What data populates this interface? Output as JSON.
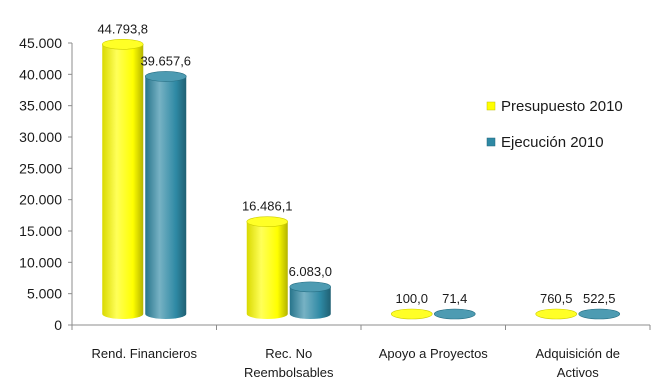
{
  "chart_data": {
    "type": "bar",
    "categories": [
      [
        "Rend. Financieros"
      ],
      [
        "Rec. No",
        "Reembolsables"
      ],
      [
        "Apoyo a Proyectos"
      ],
      [
        "Adquisición de",
        "Activos"
      ]
    ],
    "series": [
      {
        "name": "Presupuesto 2010",
        "color": "#ffff00",
        "values": [
          44793.8,
          16486.1,
          100.0,
          760.5
        ],
        "labels": [
          "44.793,8",
          "16.486,1",
          "100,0",
          "760,5"
        ]
      },
      {
        "name": "Ejecución 2010",
        "color": "#2e89a4",
        "values": [
          39657.6,
          6083.0,
          71.4,
          522.5
        ],
        "labels": [
          "39.657,6",
          "6.083,0",
          "71,4",
          "522,5"
        ]
      }
    ],
    "yticks": [
      {
        "value": 0,
        "label": "0"
      },
      {
        "value": 5000,
        "label": "5.000"
      },
      {
        "value": 10000,
        "label": "10.000"
      },
      {
        "value": 15000,
        "label": "15.000"
      },
      {
        "value": 20000,
        "label": "20.000"
      },
      {
        "value": 25000,
        "label": "25.000"
      },
      {
        "value": 30000,
        "label": "30.000"
      },
      {
        "value": 35000,
        "label": "35.000"
      },
      {
        "value": 40000,
        "label": "40.000"
      },
      {
        "value": 45000,
        "label": "45.000"
      }
    ],
    "ylim": [
      0,
      45000
    ],
    "grid": false,
    "legend_position": "right",
    "title": "",
    "xlabel": "",
    "ylabel": ""
  }
}
